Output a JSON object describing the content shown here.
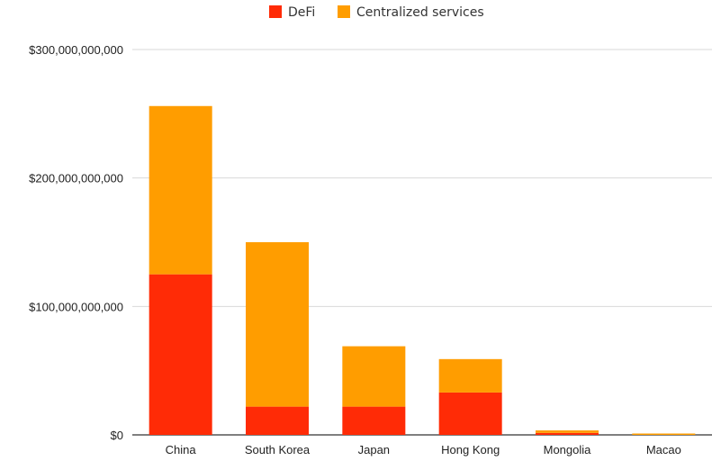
{
  "chart_data": {
    "type": "bar",
    "stacked": true,
    "title": "",
    "xlabel": "",
    "ylabel": "",
    "categories": [
      "China",
      "South Korea",
      "Japan",
      "Hong Kong",
      "Mongolia",
      "Macao"
    ],
    "series": [
      {
        "name": "DeFi",
        "color": "#ff2b06",
        "values": [
          125000000000,
          22000000000,
          22000000000,
          33000000000,
          1500000000,
          0
        ]
      },
      {
        "name": "Centralized services",
        "color": "#ff9d00",
        "values": [
          131000000000,
          128000000000,
          47000000000,
          26000000000,
          2000000000,
          500000000
        ]
      }
    ],
    "ylim": [
      0,
      300000000000
    ],
    "yticks": [
      0,
      100000000000,
      200000000000,
      300000000000
    ],
    "ytick_labels": [
      "$0",
      "$100,000,000,000",
      "$200,000,000,000",
      "$300,000,000,000"
    ],
    "grid": true,
    "legend_position": "top-center",
    "gridline_color": "#d9d9d9",
    "axis_color": "#333333"
  }
}
